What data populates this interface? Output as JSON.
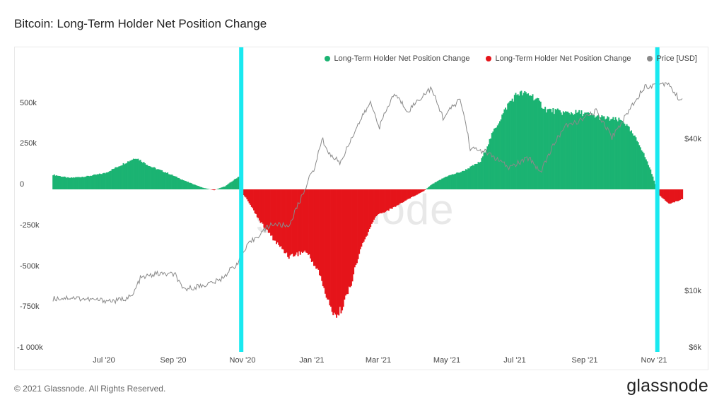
{
  "chart_data": {
    "type": "bar",
    "title": "Bitcoin: Long-Term Holder Net Position Change",
    "legend": [
      "Long-Term Holder Net Position Change",
      "Long-Term Holder Net Position Change",
      "Price [USD]"
    ],
    "legend_placement": "top-right",
    "grid": false,
    "x_ticks": [
      "Jul '20",
      "Sep '20",
      "Nov '20",
      "Jan '21",
      "Mar '21",
      "May '21",
      "Jul '21",
      "Sep '21",
      "Nov '21"
    ],
    "y_left_ticks": [
      "500k",
      "250k",
      "0",
      "-250k",
      "-500k",
      "-750k",
      "-1 000k"
    ],
    "y_left_values": [
      500000,
      250000,
      0,
      -250000,
      -500000,
      -750000,
      -1000000
    ],
    "y_right_ticks": [
      "$40k",
      "$10k",
      "$6k"
    ],
    "y_right_values": [
      40000,
      10000,
      6000
    ],
    "ylim_left": [
      -1000000,
      600000
    ],
    "ylim_right_log": [
      6000,
      80000
    ],
    "x_range": [
      "2020-05-16",
      "2021-11-22"
    ],
    "markers": [
      "2020-10-29",
      "2021-10-31"
    ],
    "net_position_keyframes": [
      [
        "2020-05-16",
        90000
      ],
      [
        "2020-05-30",
        70000
      ],
      [
        "2020-06-15",
        80000
      ],
      [
        "2020-07-01",
        100000
      ],
      [
        "2020-07-15",
        150000
      ],
      [
        "2020-07-28",
        195000
      ],
      [
        "2020-08-10",
        140000
      ],
      [
        "2020-08-25",
        100000
      ],
      [
        "2020-09-10",
        50000
      ],
      [
        "2020-09-25",
        10000
      ],
      [
        "2020-10-05",
        -5000
      ],
      [
        "2020-10-15",
        20000
      ],
      [
        "2020-10-27",
        80000
      ],
      [
        "2020-10-28",
        -10000
      ],
      [
        "2020-11-03",
        -60000
      ],
      [
        "2020-11-15",
        -200000
      ],
      [
        "2020-11-28",
        -320000
      ],
      [
        "2020-12-10",
        -410000
      ],
      [
        "2020-12-25",
        -380000
      ],
      [
        "2021-01-05",
        -500000
      ],
      [
        "2021-01-15",
        -720000
      ],
      [
        "2021-01-22",
        -780000
      ],
      [
        "2021-02-01",
        -620000
      ],
      [
        "2021-02-12",
        -350000
      ],
      [
        "2021-02-25",
        -160000
      ],
      [
        "2021-03-10",
        -120000
      ],
      [
        "2021-03-25",
        -60000
      ],
      [
        "2021-04-08",
        -10000
      ],
      [
        "2021-04-15",
        30000
      ],
      [
        "2021-04-28",
        80000
      ],
      [
        "2021-05-12",
        110000
      ],
      [
        "2021-05-28",
        170000
      ],
      [
        "2021-06-08",
        350000
      ],
      [
        "2021-06-22",
        530000
      ],
      [
        "2021-06-30",
        590000
      ],
      [
        "2021-07-12",
        580000
      ],
      [
        "2021-07-25",
        490000
      ],
      [
        "2021-08-10",
        470000
      ],
      [
        "2021-08-25",
        470000
      ],
      [
        "2021-09-05",
        450000
      ],
      [
        "2021-09-20",
        430000
      ],
      [
        "2021-10-01",
        420000
      ],
      [
        "2021-10-15",
        280000
      ],
      [
        "2021-10-25",
        120000
      ],
      [
        "2021-10-30",
        10000
      ],
      [
        "2021-11-01",
        -30000
      ],
      [
        "2021-11-10",
        -90000
      ],
      [
        "2021-11-22",
        -60000
      ]
    ],
    "price_keyframes": [
      [
        "2020-05-16",
        9400
      ],
      [
        "2020-06-01",
        9500
      ],
      [
        "2020-06-20",
        9300
      ],
      [
        "2020-07-10",
        9200
      ],
      [
        "2020-07-25",
        9600
      ],
      [
        "2020-08-01",
        11300
      ],
      [
        "2020-08-15",
        11800
      ],
      [
        "2020-09-01",
        11700
      ],
      [
        "2020-09-07",
        10200
      ],
      [
        "2020-09-25",
        10600
      ],
      [
        "2020-10-10",
        11100
      ],
      [
        "2020-10-25",
        12900
      ],
      [
        "2020-11-05",
        15500
      ],
      [
        "2020-11-25",
        18600
      ],
      [
        "2020-12-10",
        18200
      ],
      [
        "2020-12-20",
        23000
      ],
      [
        "2021-01-03",
        32000
      ],
      [
        "2021-01-08",
        40500
      ],
      [
        "2021-01-15",
        35000
      ],
      [
        "2021-01-25",
        32500
      ],
      [
        "2021-02-08",
        45000
      ],
      [
        "2021-02-20",
        56000
      ],
      [
        "2021-02-28",
        45000
      ],
      [
        "2021-03-13",
        61000
      ],
      [
        "2021-03-25",
        52000
      ],
      [
        "2021-04-14",
        64000
      ],
      [
        "2021-04-25",
        49000
      ],
      [
        "2021-05-10",
        58000
      ],
      [
        "2021-05-19",
        37000
      ],
      [
        "2021-06-01",
        36000
      ],
      [
        "2021-06-22",
        31000
      ],
      [
        "2021-07-10",
        34000
      ],
      [
        "2021-07-20",
        29800
      ],
      [
        "2021-08-10",
        45000
      ],
      [
        "2021-08-25",
        48000
      ],
      [
        "2021-09-07",
        52000
      ],
      [
        "2021-09-21",
        41000
      ],
      [
        "2021-10-01",
        48000
      ],
      [
        "2021-10-20",
        65000
      ],
      [
        "2021-11-10",
        67500
      ],
      [
        "2021-11-15",
        61000
      ],
      [
        "2021-11-22",
        57000
      ]
    ]
  },
  "colors": {
    "positive": "#1bb372",
    "negative": "#e5141a",
    "price": "#8a8a8a",
    "marker": "#19e9f0"
  },
  "watermark": "glassnode",
  "footer": {
    "copyright": "© 2021 Glassnode. All Rights Reserved.",
    "brand": "glassnode"
  }
}
